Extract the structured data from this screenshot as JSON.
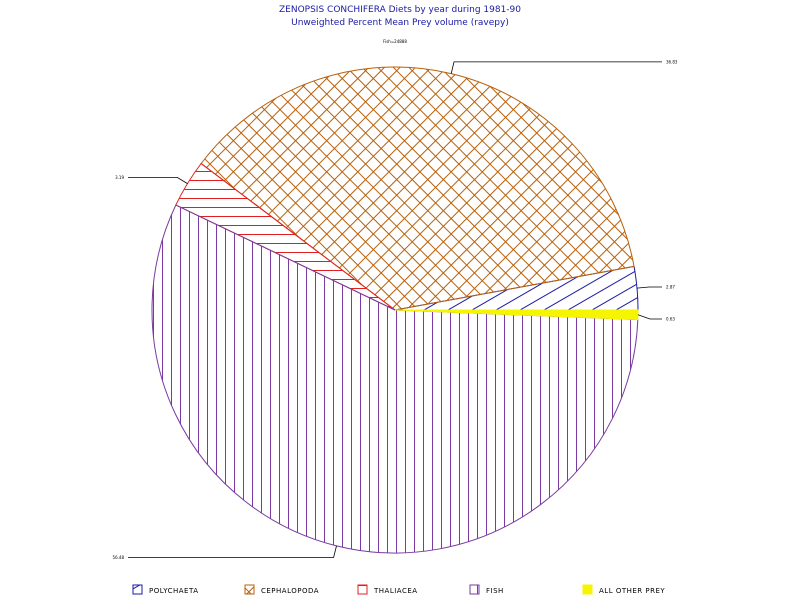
{
  "chart_data": {
    "type": "pie",
    "title": "ZENOPSIS CONCHIFERA Diets by year during 1981-90",
    "subtitle": "Unweighted Percent Mean Prey volume (ravepy)",
    "sample_label": "Fish=24888",
    "categories": [
      "POLYCHAETA",
      "CEPHALOPODA",
      "THALIACEA",
      "FISH",
      "ALL OTHER PREY"
    ],
    "values": [
      2.87,
      36.83,
      3.19,
      56.48,
      0.63
    ],
    "value_labels": [
      "2.87",
      "36.83",
      "3.19",
      "56.48",
      "0.63"
    ],
    "colors": [
      "#1a1aa6",
      "#b8600a",
      "#e02020",
      "#7a3aa0",
      "#f5f500"
    ],
    "patterns": [
      "diagonal",
      "crosshatch",
      "horizontal",
      "vertical",
      "solid"
    ],
    "legend_position": "bottom",
    "grid": false
  }
}
